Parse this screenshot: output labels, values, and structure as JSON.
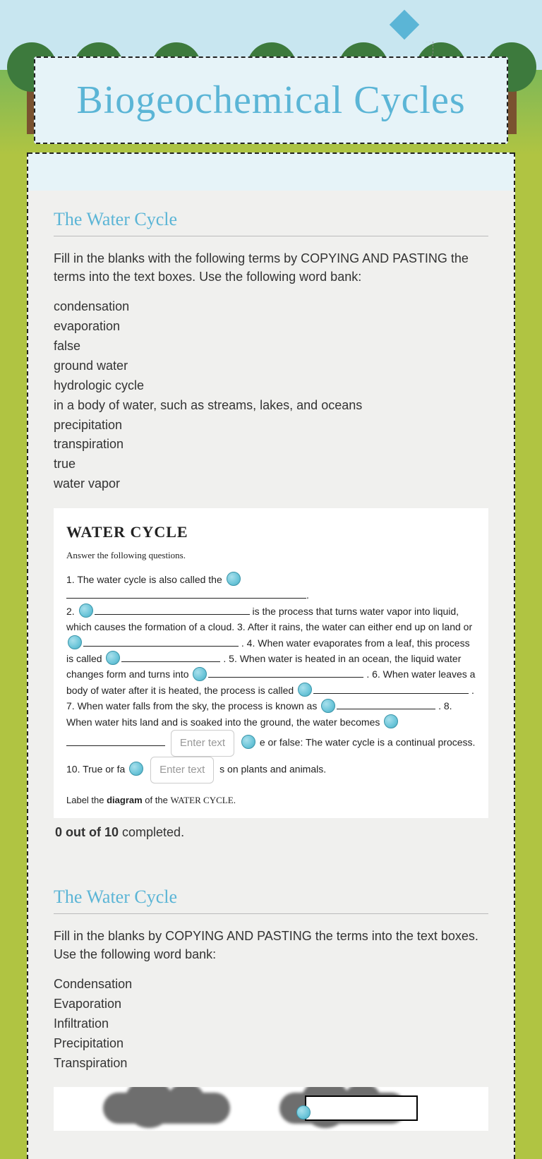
{
  "title": "Biogeochemical Cycles",
  "section1": {
    "heading": "The Water Cycle",
    "instructions": "Fill in the blanks with the following terms by COPYING AND PASTING the terms into the text boxes. Use the following word bank:",
    "word_bank": [
      "condensation",
      "evaporation",
      "false",
      "ground water",
      "hydrologic cycle",
      "in a body of water, such as streams, lakes, and oceans",
      "precipitation",
      "transpiration",
      "true",
      "water vapor"
    ],
    "questions": {
      "title": "WATER CYCLE",
      "subtitle": "Answer the following questions.",
      "q1_a": "1. The water cycle is also called the",
      "q2_a": "2.",
      "q2_b": "is the process that turns water vapor into liquid, which causes the formation of a cloud.   3. After it rains, the water can either end up on land or",
      "q4_a": ".   4. When water evaporates from a leaf, this process is called",
      "q5_a": ".   5. When water is heated in an ocean, the liquid water changes form and turns into",
      "q6_a": ".   6. When water leaves a body of water after it is heated, the process is called",
      "q7_a": ".   7. When water falls from the sky, the process is known as",
      "q8_a": ".   8. When water hits land and is soaked into the ground, the water becomes",
      "q9_a": "e or false: The water cycle is a continual process.   10.  True or fa",
      "q10_b": "s on plants and animals.",
      "label_text": "Label the diagram of the WATER CYCLE.",
      "entry_placeholder_1": "Enter text",
      "entry_placeholder_2": "Enter text"
    },
    "progress": {
      "done": "0 out of 10",
      "suffix": " completed."
    }
  },
  "section2": {
    "heading": "The Water Cycle",
    "instructions": "Fill in the blanks by COPYING AND PASTING the terms into the text boxes. Use the following word bank:",
    "word_bank": [
      "Condensation",
      "Evaporation",
      "Infiltration",
      "Precipitation",
      "Transpiration"
    ]
  },
  "colors": {
    "accent": "#5bb5d6",
    "card_bg": "#e6f3f8",
    "page_bg": "#b0c442",
    "pin": "#6bc5d9"
  }
}
